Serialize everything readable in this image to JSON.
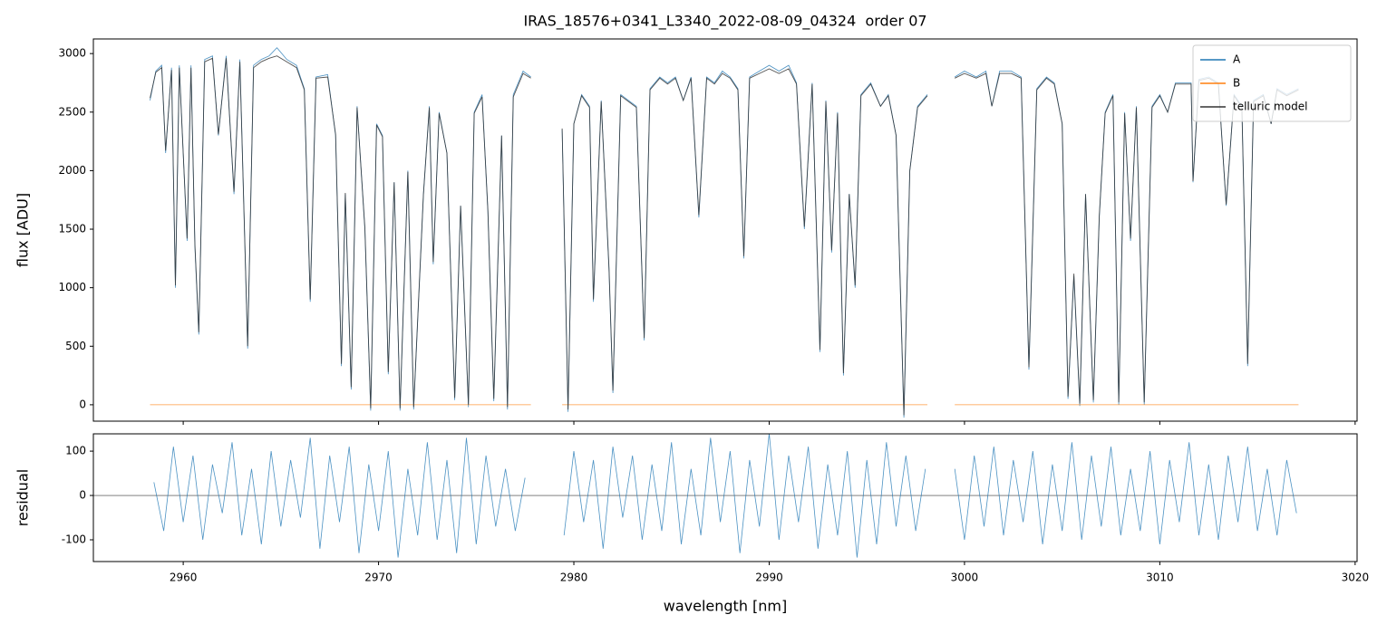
{
  "chart_data": [
    {
      "type": "line",
      "title": "IRAS_18576+0341_L3340_2022-08-09_04324  order 07",
      "y_label": "flux [ADU]",
      "x": [
        2958.3,
        2958.6,
        2958.9,
        2959.1,
        2959.4,
        2959.6,
        2959.8,
        2960.2,
        2960.4,
        2960.6,
        2960.8,
        2961.1,
        2961.5,
        2961.8,
        2962.2,
        2962.6,
        2962.9,
        2963.3,
        2963.6,
        2964.0,
        2964.4,
        2964.8,
        2965.3,
        2965.8,
        2966.2,
        2966.5,
        2966.8,
        2967.4,
        2967.8,
        2968.1,
        2968.3,
        2968.6,
        2968.9,
        2969.3,
        2969.6,
        2969.9,
        2970.2,
        2970.5,
        2970.8,
        2971.1,
        2971.5,
        2971.8,
        2972.3,
        2972.6,
        2972.8,
        2973.1,
        2973.5,
        2973.9,
        2974.2,
        2974.6,
        2974.9,
        2975.3,
        2975.6,
        2975.9,
        2976.3,
        2976.6,
        2976.9,
        2977.4,
        2977.8,
        2978.6,
        2979.4,
        2979.7,
        2980.0,
        2980.4,
        2980.8,
        2981.0,
        2981.4,
        2981.8,
        2982.0,
        2982.4,
        2982.8,
        2983.2,
        2983.6,
        2983.9,
        2984.4,
        2984.8,
        2985.2,
        2985.6,
        2986.0,
        2986.4,
        2986.8,
        2987.2,
        2987.6,
        2988.0,
        2988.4,
        2988.7,
        2989.0,
        2989.5,
        2990.0,
        2990.5,
        2991.0,
        2991.4,
        2991.8,
        2992.2,
        2992.6,
        2992.9,
        2993.2,
        2993.5,
        2993.8,
        2994.1,
        2994.4,
        2994.7,
        2995.2,
        2995.7,
        2996.1,
        2996.5,
        2996.9,
        2997.2,
        2997.6,
        2998.1,
        2998.8,
        2999.5,
        3000.0,
        3000.6,
        3001.1,
        3001.4,
        3001.8,
        3002.4,
        3002.9,
        3003.3,
        3003.7,
        3004.2,
        3004.6,
        3005.0,
        3005.3,
        3005.6,
        3005.9,
        3006.2,
        3006.6,
        3006.9,
        3007.2,
        3007.6,
        3007.9,
        3008.2,
        3008.5,
        3008.8,
        3009.2,
        3009.6,
        3010.0,
        3010.4,
        3010.8,
        3011.2,
        3011.6,
        3011.7,
        3012.0,
        3012.5,
        3013.0,
        3013.4,
        3013.8,
        3014.2,
        3014.5,
        3014.8,
        3015.3,
        3015.7,
        3016.0,
        3016.5,
        3017.1
      ],
      "series": [
        {
          "name": "A",
          "color": "#1f77b4",
          "values": [
            2600,
            2850,
            2900,
            2150,
            2880,
            1000,
            2900,
            1400,
            2900,
            1350,
            600,
            2950,
            2980,
            2300,
            2980,
            1800,
            2950,
            480,
            2900,
            2950,
            2980,
            3050,
            2950,
            2900,
            2700,
            880,
            2800,
            2820,
            2300,
            330,
            1800,
            130,
            2550,
            1500,
            -50,
            2400,
            2300,
            260,
            1900,
            -50,
            2000,
            -40,
            1800,
            2550,
            1200,
            2500,
            2150,
            40,
            1700,
            -20,
            2500,
            2650,
            1650,
            30,
            2300,
            -40,
            2650,
            2850,
            2800,
            null,
            2350,
            -60,
            2400,
            2650,
            2550,
            880,
            2600,
            1150,
            100,
            2650,
            2600,
            2550,
            550,
            2700,
            2800,
            2750,
            2800,
            2600,
            2800,
            1600,
            2800,
            2750,
            2850,
            2800,
            2700,
            1250,
            2800,
            2850,
            2900,
            2850,
            2900,
            2750,
            1500,
            2750,
            450,
            2600,
            1300,
            2500,
            250,
            1800,
            1000,
            2650,
            2750,
            2550,
            2650,
            2300,
            -110,
            2000,
            2550,
            2650,
            null,
            2800,
            2850,
            2800,
            2850,
            2550,
            2850,
            2850,
            2800,
            300,
            2700,
            2800,
            2750,
            2400,
            50,
            1100,
            -10,
            1800,
            20,
            1600,
            2500,
            2650,
            0,
            2500,
            1400,
            2550,
            0,
            2550,
            2650,
            2500,
            2750,
            2750,
            2750,
            1900,
            2780,
            2800,
            2750,
            1700,
            2650,
            2550,
            330,
            2600,
            2650,
            2400,
            2700,
            2650,
            2700
          ]
        },
        {
          "name": "B",
          "color": "#ff7f0e",
          "x": [
            2958.3,
            2977.8,
            2978.6,
            2979.4,
            2998.1,
            2998.8,
            2999.5,
            3017.1
          ],
          "values": [
            0,
            0,
            null,
            0,
            0,
            null,
            0,
            0
          ]
        },
        {
          "name": "telluric model",
          "color": "#333333",
          "values": [
            2620,
            2840,
            2880,
            2170,
            2860,
            1020,
            2880,
            1420,
            2880,
            1370,
            620,
            2930,
            2960,
            2310,
            2960,
            1820,
            2930,
            500,
            2880,
            2930,
            2960,
            2980,
            2930,
            2880,
            2690,
            900,
            2790,
            2800,
            2310,
            350,
            1810,
            150,
            2540,
            1510,
            -30,
            2390,
            2290,
            280,
            1900,
            -30,
            1990,
            -20,
            1800,
            2540,
            1220,
            2490,
            2150,
            60,
            1700,
            0,
            2490,
            2630,
            1660,
            50,
            2300,
            -20,
            2630,
            2830,
            2790,
            null,
            2360,
            -40,
            2400,
            2640,
            2540,
            900,
            2590,
            1170,
            120,
            2640,
            2590,
            2540,
            570,
            2690,
            2790,
            2740,
            2790,
            2600,
            2790,
            1620,
            2790,
            2740,
            2830,
            2790,
            2690,
            1270,
            2790,
            2830,
            2870,
            2830,
            2870,
            2740,
            1520,
            2740,
            470,
            2590,
            1320,
            2490,
            270,
            1800,
            1020,
            2640,
            2740,
            2550,
            2640,
            2300,
            -90,
            2000,
            2540,
            2640,
            null,
            2790,
            2830,
            2790,
            2830,
            2550,
            2830,
            2830,
            2790,
            320,
            2690,
            2790,
            2740,
            2400,
            70,
            1120,
            10,
            1800,
            40,
            1610,
            2490,
            2640,
            20,
            2490,
            1420,
            2540,
            20,
            2540,
            2640,
            2500,
            2740,
            2740,
            2740,
            1910,
            2770,
            2790,
            2740,
            1710,
            2640,
            2540,
            350,
            2590,
            2640,
            2400,
            2690,
            2640,
            2690
          ]
        }
      ],
      "xlim": [
        2955.4,
        3020.1
      ],
      "xticks": [
        2960,
        2970,
        2980,
        2990,
        3000,
        3010,
        3020
      ],
      "show_xtick_labels": false,
      "ylim": [
        -140,
        3125
      ],
      "yticks": [
        0,
        500,
        1000,
        1500,
        2000,
        2500,
        3000
      ],
      "legend": "upper right"
    },
    {
      "type": "line",
      "x_label": "wavelength [nm]",
      "y_label": "residual",
      "x": [
        2958.5,
        2959.0,
        2959.5,
        2960.0,
        2960.5,
        2961.0,
        2961.5,
        2962.0,
        2962.5,
        2963.0,
        2963.5,
        2964.0,
        2964.5,
        2965.0,
        2965.5,
        2966.0,
        2966.5,
        2967.0,
        2967.5,
        2968.0,
        2968.5,
        2969.0,
        2969.5,
        2970.0,
        2970.5,
        2971.0,
        2971.5,
        2972.0,
        2972.5,
        2973.0,
        2973.5,
        2974.0,
        2974.5,
        2975.0,
        2975.5,
        2976.0,
        2976.5,
        2977.0,
        2977.5,
        2978.5,
        2979.5,
        2980.0,
        2980.5,
        2981.0,
        2981.5,
        2982.0,
        2982.5,
        2983.0,
        2983.5,
        2984.0,
        2984.5,
        2985.0,
        2985.5,
        2986.0,
        2986.5,
        2987.0,
        2987.5,
        2988.0,
        2988.5,
        2989.0,
        2989.5,
        2990.0,
        2990.5,
        2991.0,
        2991.5,
        2992.0,
        2992.5,
        2993.0,
        2993.5,
        2994.0,
        2994.5,
        2995.0,
        2995.5,
        2996.0,
        2996.5,
        2997.0,
        2997.5,
        2998.0,
        2998.7,
        2999.5,
        3000.0,
        3000.5,
        3001.0,
        3001.5,
        3002.0,
        3002.5,
        3003.0,
        3003.5,
        3004.0,
        3004.5,
        3005.0,
        3005.5,
        3006.0,
        3006.5,
        3007.0,
        3007.5,
        3008.0,
        3008.5,
        3009.0,
        3009.5,
        3010.0,
        3010.5,
        3011.0,
        3011.5,
        3012.0,
        3012.5,
        3013.0,
        3013.5,
        3014.0,
        3014.5,
        3015.0,
        3015.5,
        3016.0,
        3016.5,
        3017.0
      ],
      "series": [
        {
          "color": "#1f77b4",
          "values": [
            30,
            -80,
            110,
            -60,
            90,
            -100,
            70,
            -40,
            120,
            -90,
            60,
            -110,
            100,
            -70,
            80,
            -50,
            130,
            -120,
            90,
            -60,
            110,
            -130,
            70,
            -80,
            100,
            -140,
            60,
            -90,
            120,
            -100,
            80,
            -130,
            130,
            -110,
            90,
            -70,
            60,
            -80,
            40,
            null,
            -90,
            100,
            -60,
            80,
            -120,
            110,
            -50,
            90,
            -100,
            70,
            -80,
            120,
            -110,
            60,
            -90,
            130,
            -60,
            100,
            -130,
            80,
            -70,
            140,
            -100,
            90,
            -60,
            110,
            -120,
            70,
            -90,
            100,
            -140,
            80,
            -110,
            120,
            -70,
            90,
            -80,
            60,
            null,
            60,
            -100,
            90,
            -70,
            110,
            -90,
            80,
            -60,
            100,
            -110,
            70,
            -80,
            120,
            -100,
            90,
            -70,
            110,
            -90,
            60,
            -80,
            100,
            -110,
            80,
            -60,
            120,
            -90,
            70,
            -100,
            90,
            -60,
            110,
            -80,
            60,
            -90,
            80,
            -40
          ]
        }
      ],
      "hline": 0,
      "xlim": [
        2955.4,
        3020.1
      ],
      "xticks": [
        2960,
        2970,
        2980,
        2990,
        3000,
        3010,
        3020
      ],
      "show_xtick_labels": true,
      "ylim": [
        -149,
        139
      ],
      "yticks": [
        -100,
        0,
        100
      ]
    }
  ]
}
